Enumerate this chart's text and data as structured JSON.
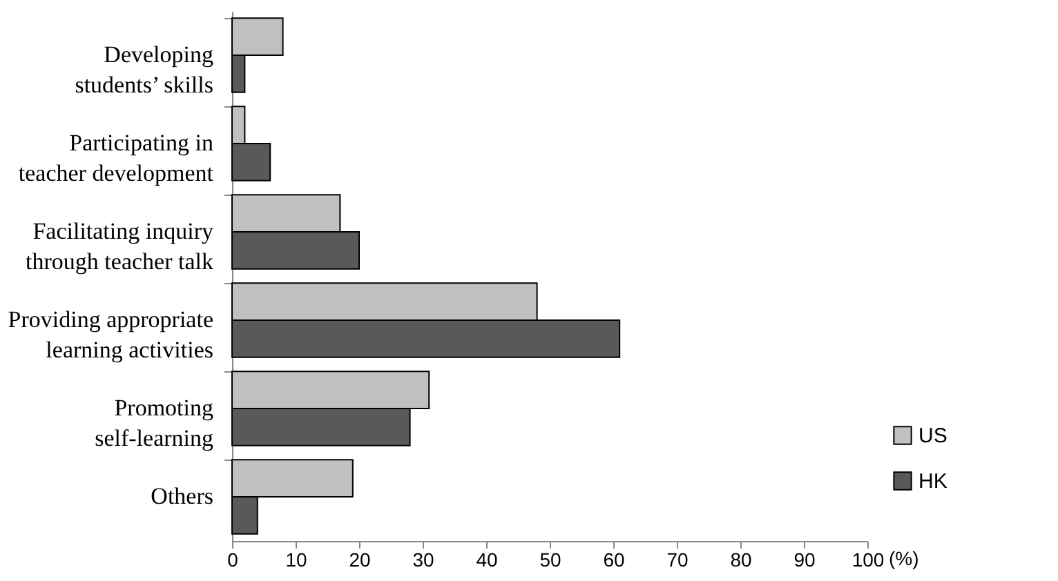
{
  "chart_data": {
    "type": "bar",
    "orientation": "horizontal",
    "xlabel": "(%)",
    "categories": [
      "Developing students’ skills",
      "Participating in teacher development",
      "Facilitating inquiry through teacher talk",
      "Providing appropriate learning activities",
      "Promoting self-learning",
      "Others"
    ],
    "series": [
      {
        "name": "US",
        "color": "#c0c0c0",
        "values": [
          8,
          2,
          17,
          48,
          31,
          19
        ]
      },
      {
        "name": "HK",
        "color": "#595959",
        "values": [
          2,
          6,
          20,
          61,
          28,
          4
        ]
      }
    ],
    "xlim": [
      0,
      100
    ],
    "xticks": [
      0,
      10,
      20,
      30,
      40,
      50,
      60,
      70,
      80,
      90,
      100
    ],
    "grid": false,
    "legend": "bottom right"
  }
}
